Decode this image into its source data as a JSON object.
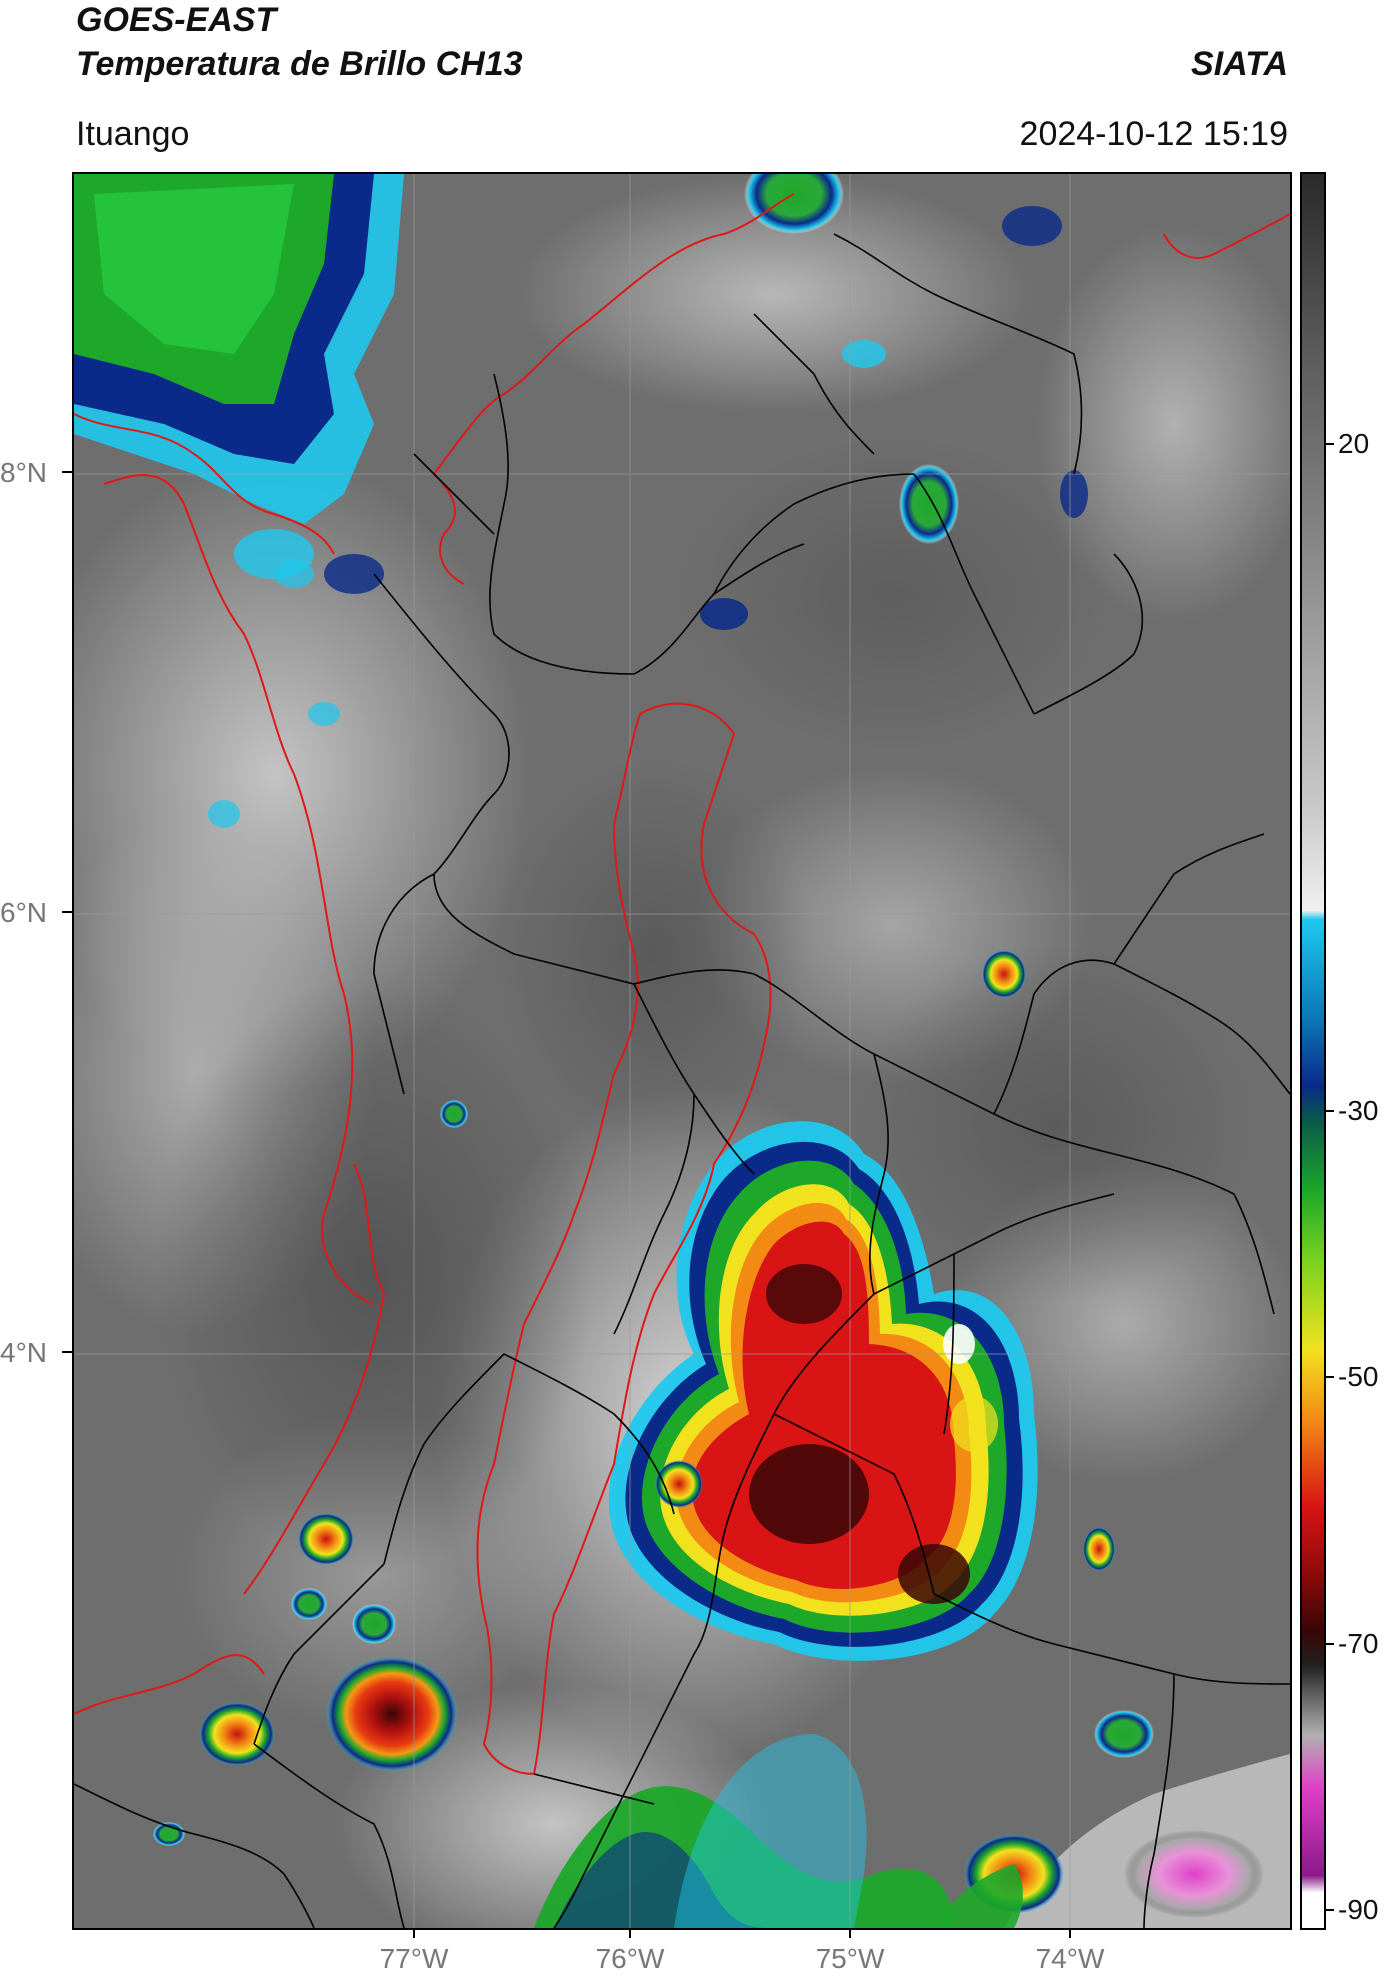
{
  "header": {
    "title": "GOES-EAST",
    "subtitle": "Temperatura de Brillo CH13",
    "brand": "SIATA",
    "location": "Ituango",
    "timestamp": "2024-10-12 15:19"
  },
  "map": {
    "lat_range": [
      2.0,
      9.0
    ],
    "lon_range": [
      -78.6,
      -73.2
    ],
    "lat_ticks": [
      "8°N",
      "6°N",
      "4°N"
    ],
    "lon_ticks": [
      "77°W",
      "76°W",
      "75°W",
      "74°W"
    ],
    "cold_cloud_cores": [
      {
        "lat": 2.6,
        "lon": -75.1,
        "min_temp_c": -70
      },
      {
        "lat": 2.6,
        "lon": -76.9,
        "min_temp_c": -65
      },
      {
        "lat": 3.3,
        "lon": -75.2,
        "min_temp_c": -70
      },
      {
        "lat": 8.6,
        "lon": -78.0,
        "min_temp_c": -40
      },
      {
        "lat": 2.1,
        "lon": -73.5,
        "min_temp_c": -85
      }
    ]
  },
  "colorbar": {
    "ticks": [
      "20",
      "-30",
      "-50",
      "-70",
      "-90"
    ],
    "range": [
      -93,
      40
    ],
    "colors": {
      "warm": "#2a2a2a",
      "neutral": "#f0f0f0",
      "cyan": "#1ec8ee",
      "blue": "#0a2a8a",
      "green": "#1ea82a",
      "yellow": "#f2e21e",
      "orange": "#f28a14",
      "red": "#d81414",
      "dark_red": "#3a0606",
      "magenta": "#e040c8"
    }
  }
}
